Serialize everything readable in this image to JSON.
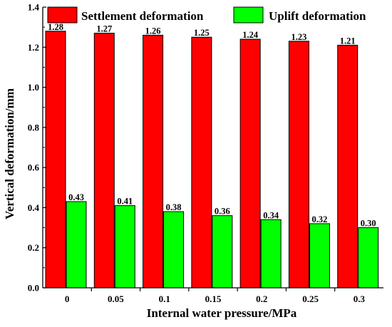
{
  "chart_data": {
    "type": "bar",
    "xlabel": "Internal water pressure/MPa",
    "ylabel": "Vertical deformation/mm",
    "categories": [
      "0",
      "0.05",
      "0.1",
      "0.15",
      "0.2",
      "0.25",
      "0.3"
    ],
    "ylim": [
      0,
      1.4
    ],
    "yticks": [
      "0.0",
      "0.2",
      "0.4",
      "0.6",
      "0.8",
      "1.0",
      "1.2",
      "1.4"
    ],
    "legend_position": "top",
    "series": [
      {
        "name": "Settlement deformation",
        "color": "#ff0000",
        "values": [
          1.28,
          1.27,
          1.26,
          1.25,
          1.24,
          1.23,
          1.21
        ],
        "labels": [
          "1.28",
          "1.27",
          "1.26",
          "1.25",
          "1.24",
          "1.23",
          "1.21"
        ]
      },
      {
        "name": "Uplift deformation",
        "color": "#00ff00",
        "values": [
          0.43,
          0.41,
          0.38,
          0.36,
          0.34,
          0.32,
          0.3
        ],
        "labels": [
          "0.43",
          "0.41",
          "0.38",
          "0.36",
          "0.34",
          "0.32",
          "0.30"
        ]
      }
    ]
  }
}
